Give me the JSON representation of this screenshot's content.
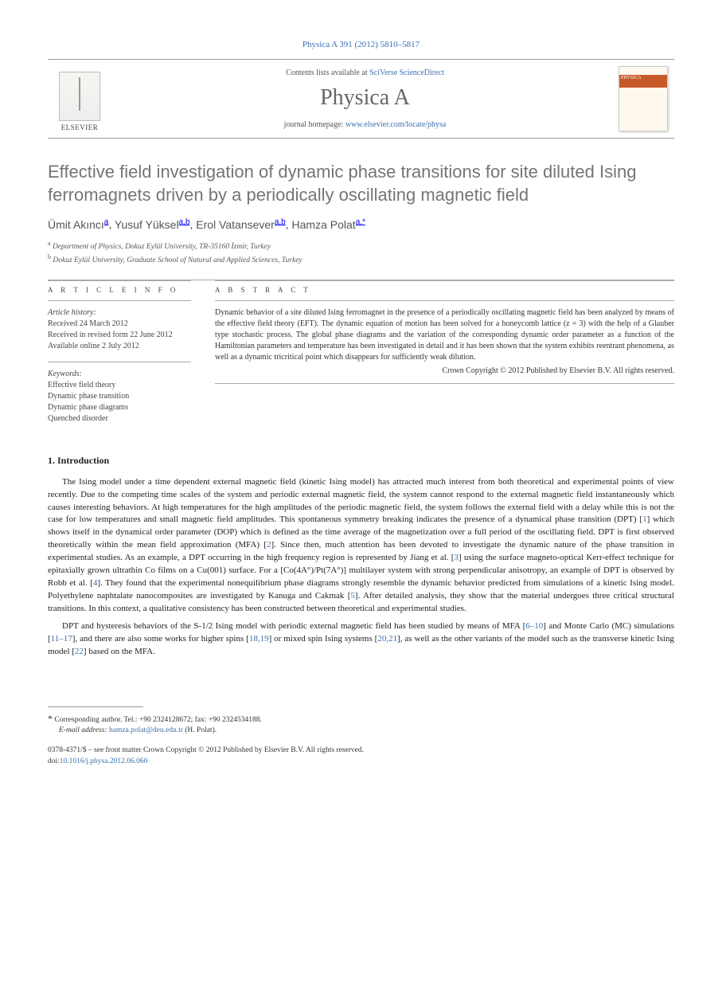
{
  "citation": "Physica A 391 (2012) 5810–5817",
  "masthead": {
    "contents_prefix": "Contents lists available at ",
    "contents_link": "SciVerse ScienceDirect",
    "journal": "Physica A",
    "homepage_prefix": "journal homepage: ",
    "homepage_link": "www.elsevier.com/locate/physa",
    "publisher": "ELSEVIER",
    "cover_label": "PHYSICA"
  },
  "title": "Effective field investigation of dynamic phase transitions for site diluted Ising ferromagnets driven by a periodically oscillating magnetic field",
  "authors_html": "Ümit Akıncı<sup>a</sup>, Yusuf Yüksel<sup>a,b</sup>, Erol Vatansever<sup>a,b</sup>, Hamza Polat<sup>a,*</sup>",
  "authors": [
    {
      "name": "Ümit Akıncı",
      "aff": "a"
    },
    {
      "name": "Yusuf Yüksel",
      "aff": "a,b"
    },
    {
      "name": "Erol Vatansever",
      "aff": "a,b"
    },
    {
      "name": "Hamza Polat",
      "aff": "a,*"
    }
  ],
  "affiliations": {
    "a": "Department of Physics, Dokuz Eylül University, TR-35160 İzmir, Turkey",
    "b": "Dokuz Eylül University, Graduate School of Natural and Applied Sciences, Turkey"
  },
  "info": {
    "heading": "A R T I C L E   I N F O",
    "history_label": "Article history:",
    "history": [
      "Received 24 March 2012",
      "Received in revised form 22 June 2012",
      "Available online 2 July 2012"
    ],
    "keywords_label": "Keywords:",
    "keywords": [
      "Effective field theory",
      "Dynamic phase transition",
      "Dynamic phase diagrams",
      "Quenched disorder"
    ]
  },
  "abstract": {
    "heading": "A B S T R A C T",
    "text": "Dynamic behavior of a site diluted Ising ferromagnet in the presence of a periodically oscillating magnetic field has been analyzed by means of the effective field theory (EFT). The dynamic equation of motion has been solved for a honeycomb lattice (z = 3) with the help of a Glauber type stochastic process. The global phase diagrams and the variation of the corresponding dynamic order parameter as a function of the Hamiltonian parameters and temperature has been investigated in detail and it has been shown that the system exhibits reentrant phenomena, as well as a dynamic tricritical point which disappears for sufficiently weak dilution.",
    "copyright": "Crown Copyright © 2012 Published by Elsevier B.V. All rights reserved."
  },
  "section1": {
    "heading": "1.  Introduction",
    "p1": "The Ising model under a time dependent external magnetic field (kinetic Ising model) has attracted much interest from both theoretical and experimental points of view recently. Due to the competing time scales of the system and periodic external magnetic field, the system cannot respond to the external magnetic field instantaneously which causes interesting behaviors. At high temperatures for the high amplitudes of the periodic magnetic field, the system follows the external field with a delay while this is not the case for low temperatures and small magnetic field amplitudes. This spontaneous symmetry breaking indicates the presence of a dynamical phase transition (DPT) [1] which shows itself in the dynamical order parameter (DOP) which is defined as the time average of the magnetization over a full period of the oscillating field. DPT is first observed theoretically within the mean field approximation (MFA) [2]. Since then, much attention has been devoted to investigate the dynamic nature of the phase transition in experimental studies. As an example, a DPT occurring in the high frequency region is represented by Jiang et al. [3] using the surface magneto-optical Kerr-effect technique for epitaxially grown ultrathin Co films on a Cu(001) surface. For a [Co(4A°)/Pt(7A°)] multilayer system with strong perpendicular anisotropy, an example of DPT is observed by Robb et al. [4]. They found that the experimental nonequilibrium phase diagrams strongly resemble the dynamic behavior predicted from simulations of a kinetic Ising model. Polyethylene naphtalate nanocomposites are investigated by Kanuga and Cakmak [5]. After detailed analysis, they show that the material undergoes three critical structural transitions. In this context, a qualitative consistency has been constructed between theoretical and experimental studies.",
    "p2": "DPT and hysteresis behaviors of the S-1/2 Ising model with periodic external magnetic field has been studied by means of MFA [6–10] and Monte Carlo (MC) simulations [11–17], and there are also some works for higher spins [18,19] or mixed spin Ising systems [20,21], as well as the other variants of the model such as the transverse kinetic Ising model [22] based on the MFA."
  },
  "footer": {
    "corresponding": "Corresponding author. Tel.: +90 2324128672; fax: +90 2324534188.",
    "email_label": "E-mail address:",
    "email": "hamza.polat@deu.edu.tr",
    "email_paren": "(H. Polat).",
    "issn": "0378-4371/$ – see front matter Crown Copyright © 2012 Published by Elsevier B.V. All rights reserved.",
    "doi_label": "doi:",
    "doi": "10.1016/j.physa.2012.06.060"
  },
  "refs": [
    "1",
    "2",
    "3",
    "4",
    "5",
    "6–10",
    "11–17",
    "18",
    "19",
    "20",
    "21",
    "22"
  ],
  "colors": {
    "link": "#3a6fb0",
    "title_gray": "#757575",
    "text": "#222222",
    "rule": "#aaaaaa"
  }
}
